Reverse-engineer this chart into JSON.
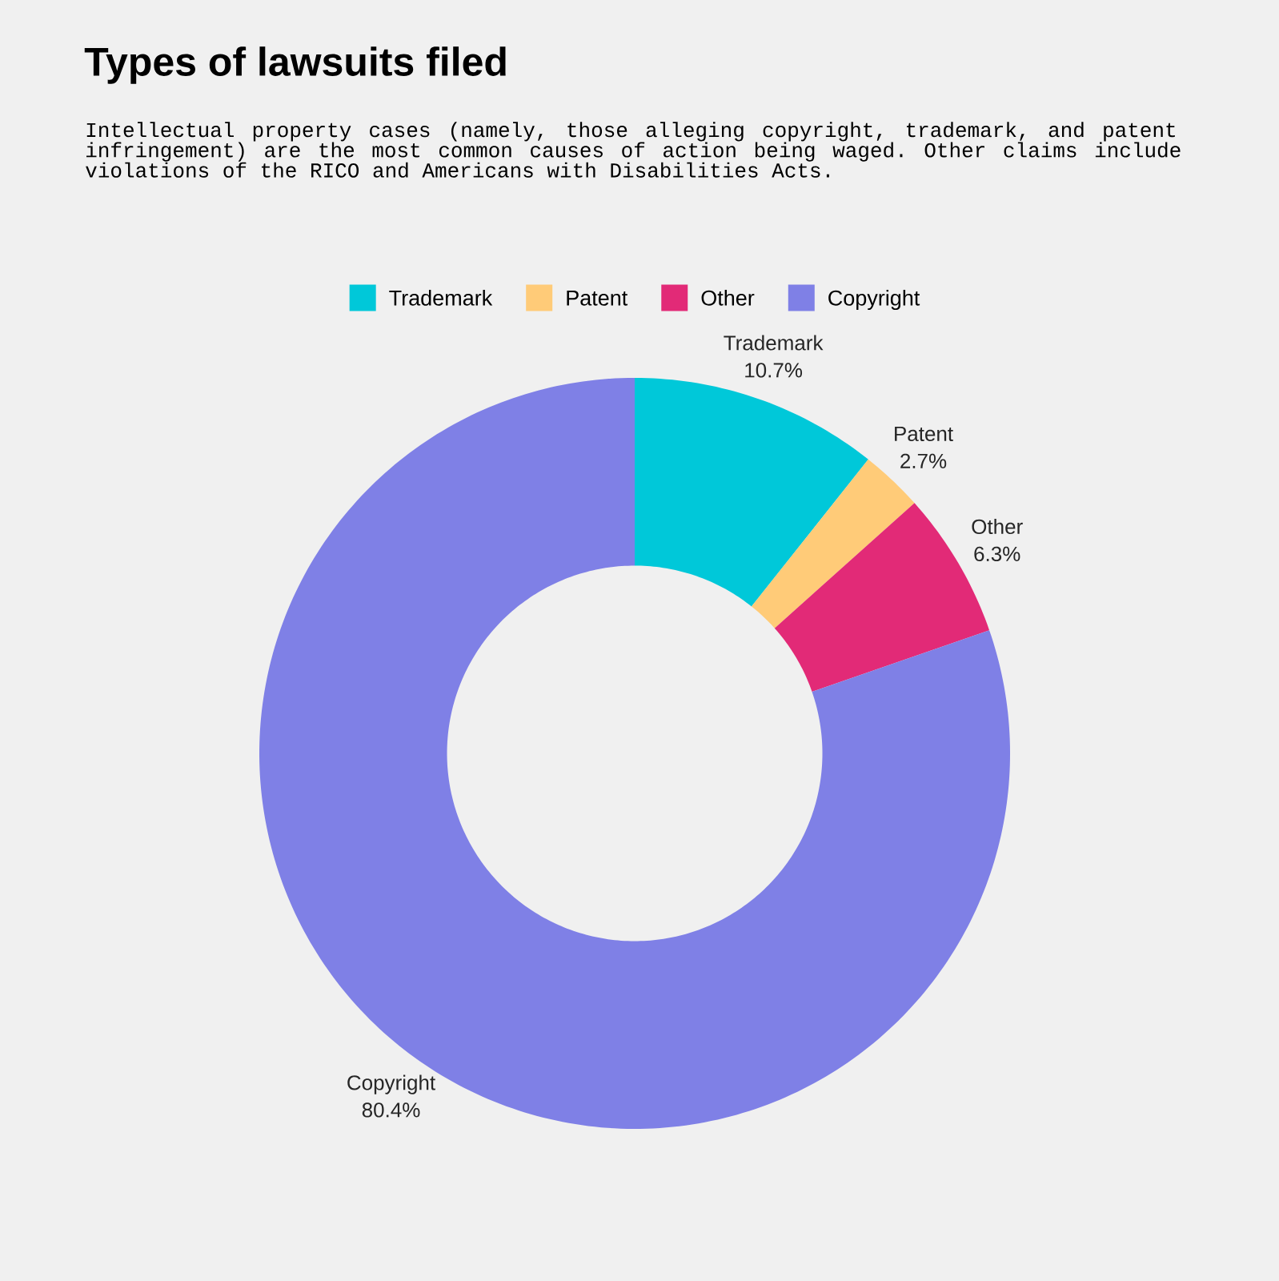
{
  "chart_data": {
    "type": "donut",
    "title": "Types of lawsuits filed",
    "subtitle": "Intellectual property cases (namely, those alleging copyright, trademark, and patent infringement) are the most common causes of action being waged. Other claims include violations of the RICO and Americans with Disabilities Acts.",
    "categories": [
      "Trademark",
      "Patent",
      "Other",
      "Copyright"
    ],
    "values": [
      10.7,
      2.7,
      6.3,
      80.4
    ],
    "value_labels": [
      "10.7%",
      "2.7%",
      "6.3%",
      "80.4%"
    ],
    "colors": [
      "#00c8d9",
      "#ffcb78",
      "#e22a77",
      "#7f80e6"
    ],
    "legend": "top"
  }
}
